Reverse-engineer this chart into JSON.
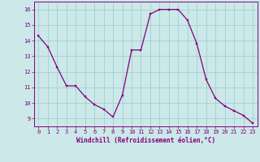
{
  "x": [
    0,
    1,
    2,
    3,
    4,
    5,
    6,
    7,
    8,
    9,
    10,
    11,
    12,
    13,
    14,
    15,
    16,
    17,
    18,
    19,
    20,
    21,
    22,
    23
  ],
  "y": [
    14.3,
    13.6,
    12.3,
    11.1,
    11.1,
    10.4,
    9.9,
    9.6,
    9.1,
    10.5,
    13.4,
    13.4,
    15.7,
    16.0,
    16.0,
    16.0,
    15.3,
    13.8,
    11.5,
    10.3,
    9.8,
    9.5,
    9.2,
    8.7
  ],
  "line_color": "#800080",
  "marker_color": "#800080",
  "bg_color": "#cce8e8",
  "grid_color": "#99cccc",
  "xlabel": "Windchill (Refroidissement éolien,°C)",
  "ylim": [
    8.5,
    16.5
  ],
  "xlim": [
    -0.5,
    23.5
  ],
  "yticks": [
    9,
    10,
    11,
    12,
    13,
    14,
    15,
    16
  ],
  "xticks": [
    0,
    1,
    2,
    3,
    4,
    5,
    6,
    7,
    8,
    9,
    10,
    11,
    12,
    13,
    14,
    15,
    16,
    17,
    18,
    19,
    20,
    21,
    22,
    23
  ],
  "tick_fontsize": 5.0,
  "xlabel_fontsize": 5.5,
  "line_width": 0.9,
  "marker_size": 2.0
}
